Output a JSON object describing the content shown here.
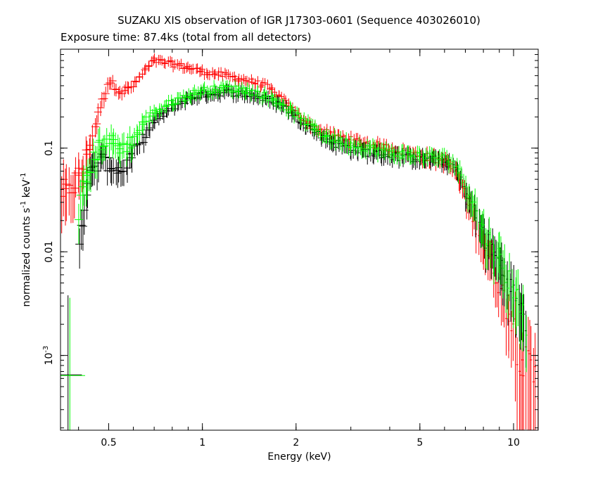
{
  "chart_data": {
    "type": "scatter",
    "title": "SUZAKU XIS observation of IGR J17303-0601 (Sequence 403026010)",
    "subtitle": "Exposure time: 87.4ks (total from all detectors)",
    "xlabel": "Energy (keV)",
    "ylabel_parts": {
      "text": "normalized counts s",
      "exp1": "-1",
      "mid": " keV",
      "exp2": "-1"
    },
    "xscale": "log",
    "yscale": "log",
    "xlim": [
      0.35,
      12.0
    ],
    "ylim": [
      0.00019,
      0.9
    ],
    "x_ticks": [
      {
        "value": 0.5,
        "label": "0.5"
      },
      {
        "value": 1,
        "label": "1"
      },
      {
        "value": 2,
        "label": "2"
      },
      {
        "value": 5,
        "label": "5"
      },
      {
        "value": 10,
        "label": "10"
      }
    ],
    "y_ticks": [
      {
        "value": 0.1,
        "label": "0.1"
      },
      {
        "value": 0.01,
        "label": "0.01"
      },
      {
        "value": 0.001,
        "label": "10",
        "exponent": "-3"
      }
    ],
    "grid": false,
    "series": [
      {
        "color": "#ff0000",
        "x": [
          0.35,
          0.37,
          0.39,
          0.41,
          0.43,
          0.45,
          0.47,
          0.5,
          0.55,
          0.6,
          0.65,
          0.7,
          0.8,
          0.9,
          1.0,
          1.2,
          1.4,
          1.6,
          1.8,
          2.0,
          2.2,
          2.5,
          3.0,
          3.5,
          4.0,
          5.0,
          6.0,
          6.5,
          7.0,
          7.5,
          8.0,
          9.0,
          10.0,
          11.0,
          12.0
        ],
        "y": [
          0.04,
          0.035,
          0.05,
          0.06,
          0.1,
          0.15,
          0.25,
          0.45,
          0.35,
          0.4,
          0.55,
          0.7,
          0.65,
          0.6,
          0.55,
          0.5,
          0.45,
          0.4,
          0.3,
          0.22,
          0.17,
          0.14,
          0.12,
          0.11,
          0.1,
          0.085,
          0.075,
          0.06,
          0.035,
          0.02,
          0.012,
          0.005,
          0.002,
          0.0008,
          0.0005
        ],
        "err": [
          0.4,
          0.35,
          0.3,
          0.25,
          0.2,
          0.15,
          0.12,
          0.1,
          0.1,
          0.08,
          0.08,
          0.08,
          0.08,
          0.08,
          0.08,
          0.08,
          0.08,
          0.08,
          0.08,
          0.09,
          0.09,
          0.1,
          0.1,
          0.1,
          0.1,
          0.12,
          0.12,
          0.15,
          0.2,
          0.25,
          0.3,
          0.4,
          0.6,
          0.8,
          1.0
        ]
      },
      {
        "color": "#000000",
        "x": [
          0.4,
          0.43,
          0.47,
          0.5,
          0.55,
          0.6,
          0.65,
          0.7,
          0.8,
          0.9,
          1.0,
          1.2,
          1.4,
          1.6,
          1.8,
          2.0,
          2.2,
          2.5,
          3.0,
          3.5,
          4.0,
          5.0,
          6.0,
          6.5,
          7.0,
          7.5,
          8.0,
          9.0,
          10.0,
          11.0
        ],
        "y": [
          0.012,
          0.05,
          0.08,
          0.07,
          0.06,
          0.09,
          0.13,
          0.18,
          0.25,
          0.3,
          0.33,
          0.35,
          0.33,
          0.3,
          0.26,
          0.2,
          0.16,
          0.12,
          0.1,
          0.09,
          0.085,
          0.08,
          0.075,
          0.065,
          0.04,
          0.025,
          0.015,
          0.008,
          0.004,
          0.002
        ],
        "err": [
          0.3,
          0.25,
          0.2,
          0.2,
          0.2,
          0.15,
          0.12,
          0.1,
          0.1,
          0.1,
          0.1,
          0.1,
          0.1,
          0.1,
          0.1,
          0.1,
          0.1,
          0.12,
          0.12,
          0.12,
          0.12,
          0.12,
          0.12,
          0.15,
          0.2,
          0.25,
          0.3,
          0.35,
          0.4,
          0.5
        ]
      },
      {
        "color": "#00ff00",
        "x": [
          0.4,
          0.43,
          0.47,
          0.5,
          0.55,
          0.6,
          0.65,
          0.7,
          0.8,
          0.9,
          1.0,
          1.2,
          1.4,
          1.6,
          1.8,
          2.0,
          2.2,
          2.5,
          3.0,
          3.5,
          4.0,
          5.0,
          6.0,
          6.5,
          7.0,
          7.5,
          8.0,
          9.0,
          10.0,
          11.0
        ],
        "y": [
          0.025,
          0.06,
          0.11,
          0.12,
          0.1,
          0.12,
          0.18,
          0.22,
          0.28,
          0.32,
          0.36,
          0.38,
          0.36,
          0.32,
          0.27,
          0.21,
          0.17,
          0.13,
          0.11,
          0.1,
          0.09,
          0.085,
          0.08,
          0.07,
          0.045,
          0.028,
          0.016,
          0.009,
          0.0045,
          0.0022
        ],
        "err": [
          0.3,
          0.25,
          0.2,
          0.2,
          0.2,
          0.15,
          0.12,
          0.1,
          0.1,
          0.1,
          0.1,
          0.1,
          0.1,
          0.1,
          0.1,
          0.1,
          0.1,
          0.12,
          0.12,
          0.12,
          0.12,
          0.12,
          0.12,
          0.15,
          0.2,
          0.25,
          0.3,
          0.35,
          0.4,
          0.5
        ]
      }
    ]
  }
}
